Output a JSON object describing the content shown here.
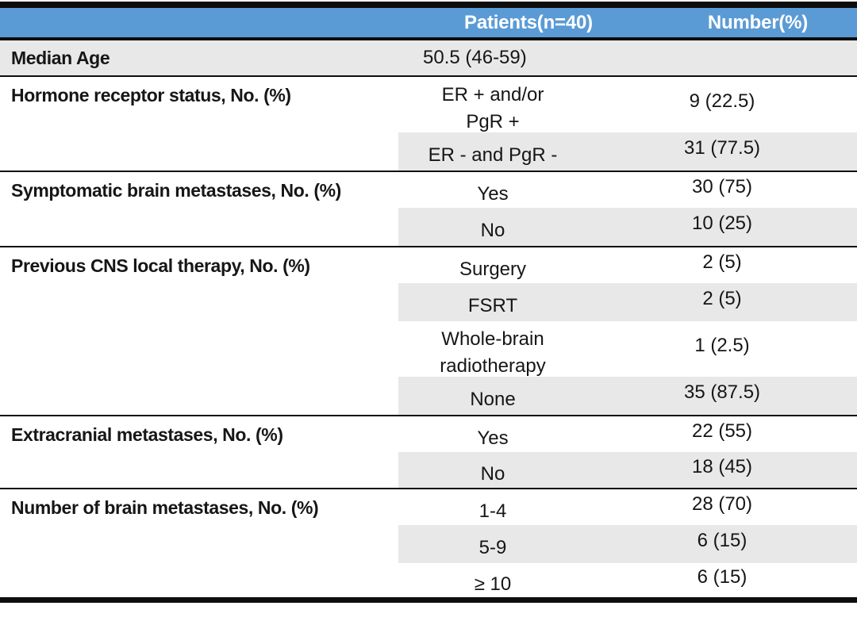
{
  "colors": {
    "header_bg": "#5b9bd5",
    "header_text": "#ffffff",
    "stripe": "#e9e8e8",
    "rule": "#0d0d0d"
  },
  "table": {
    "columns": {
      "patients": "Patients(n=40)",
      "number": "Number(%)"
    },
    "median_age": {
      "label": "Median Age",
      "value": "50.5 (46-59)",
      "number": ""
    },
    "sections": [
      {
        "label": "Hormone receptor status, No. (%)",
        "rows": [
          {
            "category": "ER + and/or\nPgR +",
            "number": "9 (22.5)"
          },
          {
            "category": "ER - and PgR -",
            "number": "31 (77.5)"
          }
        ]
      },
      {
        "label": "Symptomatic brain metastases, No. (%)",
        "rows": [
          {
            "category": "Yes",
            "number": "30 (75)"
          },
          {
            "category": "No",
            "number": "10 (25)"
          }
        ]
      },
      {
        "label": "Previous CNS local therapy, No. (%)",
        "rows": [
          {
            "category": "Surgery",
            "number": "2 (5)"
          },
          {
            "category": "FSRT",
            "number": "2 (5)"
          },
          {
            "category": "Whole-brain\nradiotherapy",
            "number": "1 (2.5)"
          },
          {
            "category": "None",
            "number": "35 (87.5)"
          }
        ]
      },
      {
        "label": "Extracranial metastases, No. (%)",
        "rows": [
          {
            "category": "Yes",
            "number": "22 (55)"
          },
          {
            "category": "No",
            "number": "18 (45)"
          }
        ]
      },
      {
        "label": "Number of brain metastases, No. (%)",
        "rows": [
          {
            "category": "1-4",
            "number": "28 (70)"
          },
          {
            "category": "5-9",
            "number": "6 (15)"
          },
          {
            "category": "≥ 10",
            "number": "6 (15)"
          }
        ]
      }
    ]
  }
}
